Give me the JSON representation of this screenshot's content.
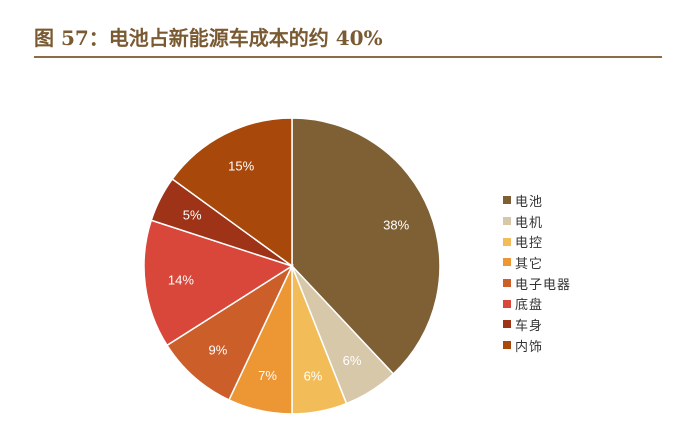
{
  "title": "图 57：电池占新能源车成本的约 40%",
  "chart_data": {
    "type": "pie",
    "title": "",
    "legend_position": "right",
    "slices": [
      {
        "name": "电池",
        "value": 38,
        "label": "38%",
        "color": "#7f6034"
      },
      {
        "name": "电机",
        "value": 6,
        "label": "6%",
        "color": "#d8c8aa"
      },
      {
        "name": "电控",
        "value": 6,
        "label": "6%",
        "color": "#f2bd58"
      },
      {
        "name": "其它",
        "value": 7,
        "label": "7%",
        "color": "#ec9734"
      },
      {
        "name": "电子电器",
        "value": 9,
        "label": "9%",
        "color": "#cc5e2a"
      },
      {
        "name": "底盘",
        "value": 14,
        "label": "14%",
        "color": "#d9473a"
      },
      {
        "name": "车身",
        "value": 5,
        "label": "5%",
        "color": "#9e3317"
      },
      {
        "name": "内饰",
        "value": 15,
        "label": "15%",
        "color": "#a8480b"
      }
    ]
  }
}
